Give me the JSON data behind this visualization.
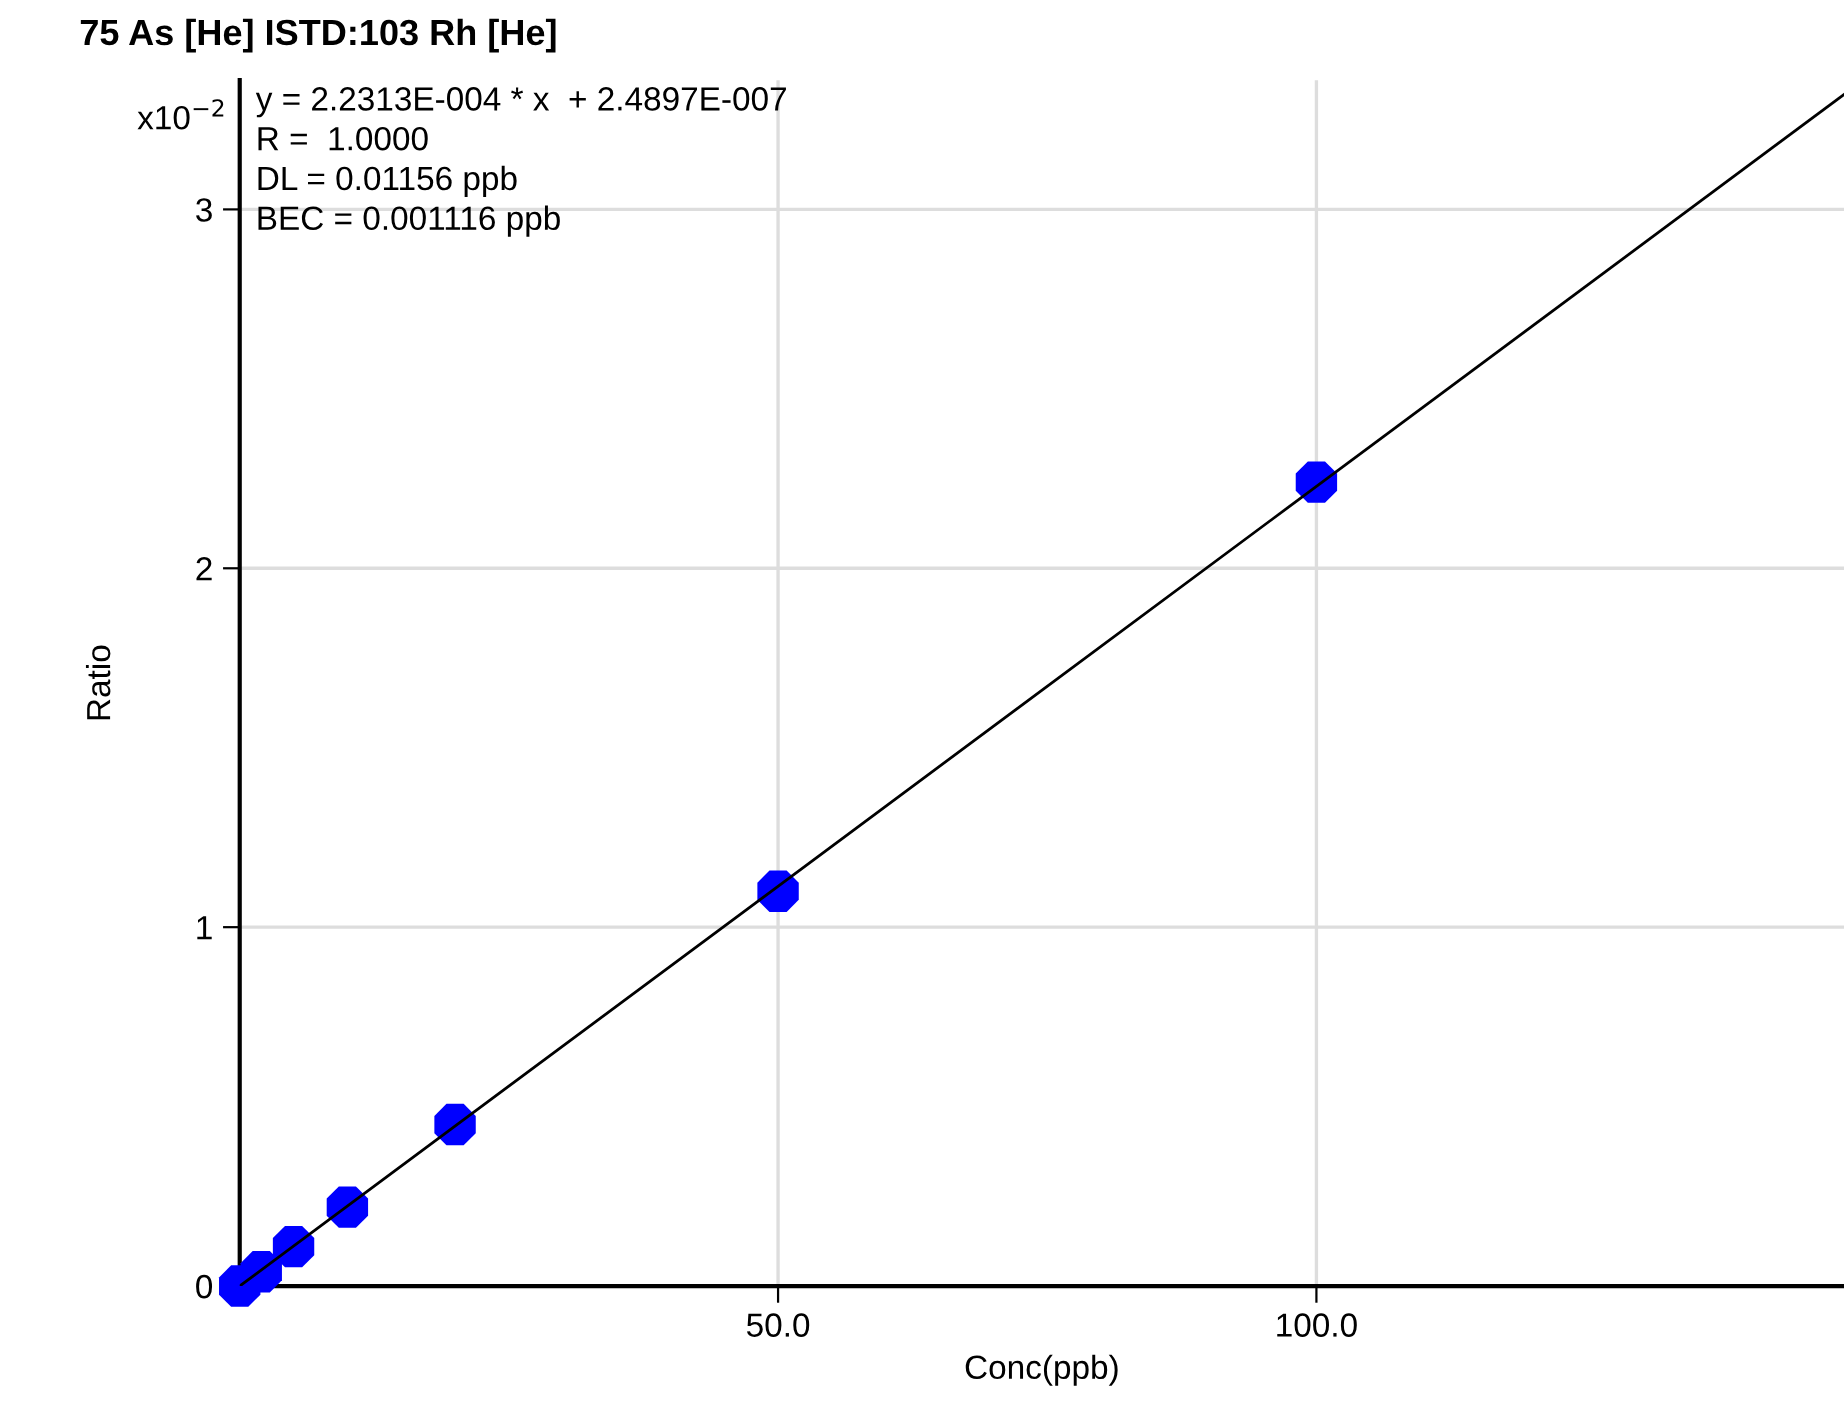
{
  "chart_data": {
    "type": "scatter",
    "title": "75 As [He] ISTD:103 Rh [He]",
    "xlabel": "Conc(ppb)",
    "ylabel": "Ratio",
    "annotations": [
      "x10$^{−2}$",
      "y = 2.2313E-004 * x  + 2.4897E-007",
      "R =  1.0000",
      "DL = 0.01156 ppb",
      "BEC = 0.001116 ppb"
    ],
    "series": [
      {
        "color": "#0000ff",
        "marker": "circle",
        "x": [
          0,
          2,
          5,
          10,
          20,
          50,
          100
        ],
        "values": [
          0,
          0.04,
          0.11,
          0.22,
          0.45,
          1.1,
          2.24
        ]
      },
      {
        "type": "line",
        "color": "#000000",
        "marker": "none",
        "line_style": "solid",
        "x": [
          0,
          149
        ],
        "values": [
          0,
          3.32
        ]
      }
    ],
    "xlim": [
      0,
      149
    ],
    "ylim": [
      0,
      3.36
    ],
    "xticks": [
      {
        "value": 0,
        "label": null
      },
      {
        "value": 50,
        "label": "50.0"
      },
      {
        "value": 100,
        "label": "100.0"
      }
    ],
    "yticks": [
      0,
      1,
      2,
      3
    ],
    "grid": true,
    "legend": false
  }
}
